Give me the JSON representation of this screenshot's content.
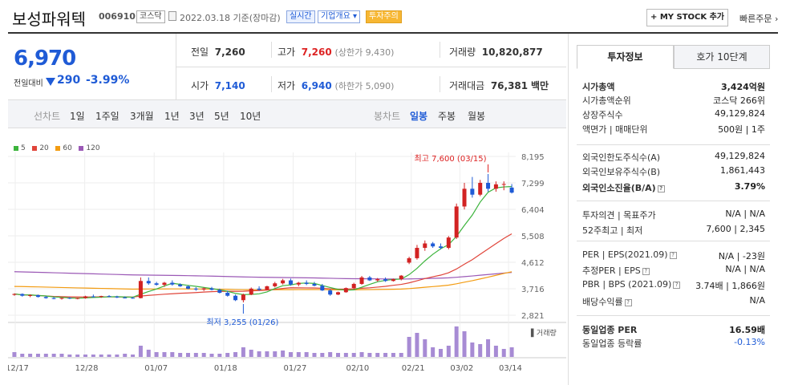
{
  "stock": {
    "name": "보성파워텍",
    "code": "006910",
    "market_tag": "코스닥",
    "date": "2022.03.18 기준(장마감)",
    "realtime_tag": "실시간",
    "company_tag": "기업개요 ▾",
    "warning_tag": "투자주의",
    "my_stock_label": "+ MY STOCK 추가",
    "quick_order_label": "빠른주문 ›"
  },
  "price": {
    "current": "6,970",
    "change_label": "전일대비",
    "change": "290",
    "change_pct": "-3.99%",
    "color_down": "#1f5bd6",
    "color_up": "#d22222"
  },
  "summary": {
    "prev_label": "전일",
    "prev": "7,260",
    "high_label": "고가",
    "high": "7,260",
    "upper_limit": "(상한가 9,430)",
    "volume_label": "거래량",
    "volume": "10,820,877",
    "open_label": "시가",
    "open": "7,140",
    "low_label": "저가",
    "low": "6,940",
    "lower_limit": "(하한가 5,090)",
    "amount_label": "거래대금",
    "amount": "76,381",
    "amount_unit": "백만"
  },
  "period_bar": {
    "label": "선차트",
    "items": [
      "1일",
      "1주일",
      "3개월",
      "1년",
      "3년",
      "5년",
      "10년"
    ],
    "candle_label": "봉차트",
    "candle_items": [
      "일봉",
      "주봉",
      "월봉"
    ],
    "candle_selected": "일봉"
  },
  "chart_data": {
    "type": "candlestick",
    "ma_legend": [
      {
        "name": "5",
        "color": "#3cb43c"
      },
      {
        "name": "20",
        "color": "#e0453a"
      },
      {
        "name": "60",
        "color": "#f39c12"
      },
      {
        "name": "120",
        "color": "#9b59b6"
      }
    ],
    "y_ticks": [
      "8,195",
      "7,299",
      "6,404",
      "5,508",
      "4,612",
      "3,716",
      "2,821"
    ],
    "ylim": [
      2821,
      8195
    ],
    "x_ticks": [
      "12/17",
      "12/28",
      "01/07",
      "01/18",
      "01/27",
      "02/10",
      "02/21",
      "03/02",
      "03/14"
    ],
    "volume_label": "거래량",
    "high_annotation": "최고 7,600 (03/15)",
    "low_annotation": "최저 3,255 (01/26)",
    "candles": [
      [
        3510,
        3560,
        3480,
        3540
      ],
      [
        3540,
        3560,
        3450,
        3480
      ],
      [
        3480,
        3530,
        3430,
        3500
      ],
      [
        3500,
        3520,
        3420,
        3440
      ],
      [
        3440,
        3470,
        3380,
        3400
      ],
      [
        3400,
        3440,
        3360,
        3380
      ],
      [
        3380,
        3420,
        3350,
        3410
      ],
      [
        3410,
        3430,
        3370,
        3390
      ],
      [
        3390,
        3410,
        3360,
        3400
      ],
      [
        3400,
        3480,
        3380,
        3460
      ],
      [
        3460,
        3520,
        3420,
        3440
      ],
      [
        3440,
        3480,
        3410,
        3470
      ],
      [
        3470,
        3500,
        3430,
        3450
      ],
      [
        3450,
        3480,
        3400,
        3420
      ],
      [
        3420,
        3460,
        3390,
        3410
      ],
      [
        3410,
        3440,
        3380,
        3400
      ],
      [
        3400,
        4100,
        3390,
        3980
      ],
      [
        3980,
        4100,
        3850,
        3900
      ],
      [
        3900,
        3950,
        3820,
        3850
      ],
      [
        3850,
        3950,
        3780,
        3920
      ],
      [
        3920,
        4000,
        3820,
        3860
      ],
      [
        3860,
        3900,
        3780,
        3800
      ],
      [
        3800,
        3830,
        3700,
        3720
      ],
      [
        3720,
        3770,
        3650,
        3690
      ],
      [
        3690,
        3760,
        3640,
        3730
      ],
      [
        3730,
        3780,
        3660,
        3680
      ],
      [
        3680,
        3720,
        3560,
        3580
      ],
      [
        3580,
        3650,
        3450,
        3480
      ],
      [
        3480,
        3520,
        3300,
        3330
      ],
      [
        3330,
        3550,
        3255,
        3520
      ],
      [
        3520,
        3760,
        3500,
        3720
      ],
      [
        3720,
        3800,
        3650,
        3680
      ],
      [
        3680,
        3820,
        3660,
        3800
      ],
      [
        3800,
        3950,
        3760,
        3900
      ],
      [
        3900,
        4050,
        3860,
        4000
      ],
      [
        4000,
        4060,
        3820,
        3860
      ],
      [
        3860,
        3950,
        3800,
        3920
      ],
      [
        3920,
        4000,
        3840,
        3880
      ],
      [
        3880,
        3950,
        3800,
        3820
      ],
      [
        3820,
        3880,
        3640,
        3660
      ],
      [
        3660,
        3700,
        3480,
        3520
      ],
      [
        3520,
        3620,
        3500,
        3600
      ],
      [
        3600,
        3760,
        3580,
        3740
      ],
      [
        3740,
        3920,
        3700,
        3880
      ],
      [
        3880,
        4150,
        3850,
        4100
      ],
      [
        4100,
        4150,
        3980,
        4000
      ],
      [
        4000,
        4080,
        3960,
        4040
      ],
      [
        4040,
        4100,
        3950,
        3980
      ],
      [
        3980,
        4060,
        3960,
        4040
      ],
      [
        4040,
        4180,
        4000,
        4160
      ],
      [
        4600,
        4800,
        4550,
        4750
      ],
      [
        4750,
        5200,
        4700,
        5100
      ],
      [
        5100,
        5350,
        5000,
        5250
      ],
      [
        5250,
        5300,
        5100,
        5150
      ],
      [
        5150,
        5250,
        5050,
        5100
      ],
      [
        5100,
        5500,
        5050,
        5450
      ],
      [
        5450,
        6600,
        5400,
        6500
      ],
      [
        6500,
        7300,
        6400,
        7100
      ],
      [
        7100,
        7500,
        6800,
        6900
      ],
      [
        6900,
        7400,
        6850,
        7300
      ],
      [
        7300,
        7600,
        7000,
        7100
      ],
      [
        7100,
        7350,
        7000,
        7250
      ],
      [
        7250,
        7350,
        7050,
        7260
      ],
      [
        7140,
        7260,
        6940,
        6970
      ]
    ],
    "volumes": [
      6,
      4,
      4,
      4,
      4,
      4,
      4,
      3,
      3,
      3,
      3,
      3,
      3,
      3,
      4,
      3,
      14,
      9,
      6,
      6,
      6,
      5,
      5,
      5,
      5,
      4,
      4,
      5,
      6,
      12,
      9,
      7,
      7,
      7,
      8,
      6,
      6,
      6,
      5,
      5,
      6,
      5,
      5,
      5,
      6,
      5,
      5,
      5,
      5,
      5,
      25,
      30,
      22,
      12,
      10,
      14,
      38,
      32,
      18,
      16,
      22,
      14,
      10,
      12
    ]
  },
  "tabs": {
    "invest": "투자정보",
    "quote": "호가 10단계"
  },
  "info": {
    "market_cap_label": "시가총액",
    "market_cap": "3,424억원",
    "rank_label": "시가총액순위",
    "rank": "코스닥 266위",
    "shares_label": "상장주식수",
    "shares": "49,129,824",
    "par_label": "액면가 | 매매단위",
    "par": "500원 | 1주",
    "foreign_limit_label": "외국인한도주식수(A)",
    "foreign_limit": "49,129,824",
    "foreign_hold_label": "외국인보유주식수(B)",
    "foreign_hold": "1,861,443",
    "foreign_ratio_label": "외국인소진율(B/A)",
    "foreign_ratio": "3.79%",
    "opinion_label": "투자의견 | 목표주가",
    "opinion": "N/A | N/A",
    "wk52_label": "52주최고 | 최저",
    "wk52": "7,600 | 2,345",
    "per_label": "PER | EPS(2021.09)",
    "per": "N/A | -23원",
    "est_per_label": "추정PER | EPS",
    "est_per": "N/A | N/A",
    "pbr_label": "PBR | BPS (2021.09)",
    "pbr": "3.74배 | 1,866원",
    "div_label": "배당수익률",
    "div": "N/A",
    "ind_per_label": "동일업종 PER",
    "ind_per": "16.59배",
    "ind_rate_label": "동일업종 등락률",
    "ind_rate": "-0.13%"
  }
}
